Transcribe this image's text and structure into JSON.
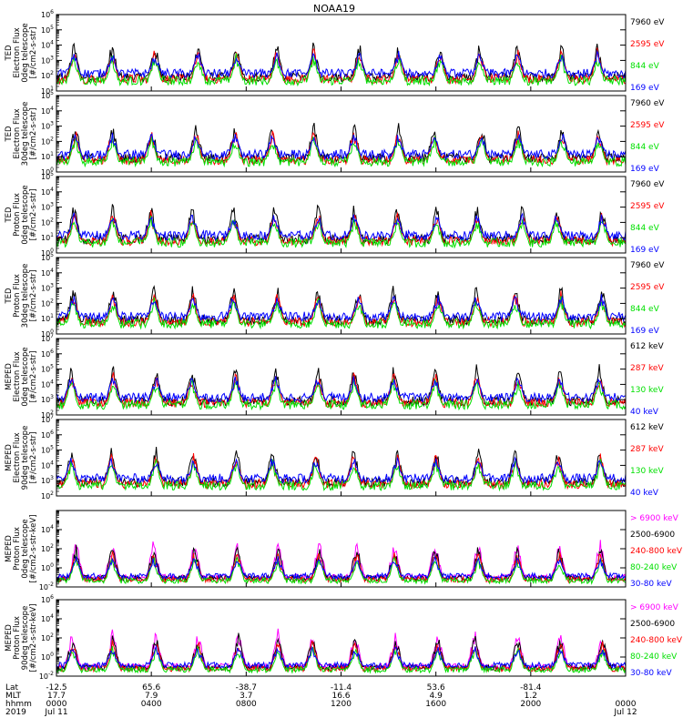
{
  "title": "NOAA19",
  "colors": {
    "black": "#000000",
    "red": "#ff0000",
    "green": "#00e000",
    "blue": "#0000ff",
    "magenta": "#ff00ff",
    "axis": "#000000"
  },
  "footer": {
    "row_labels": [
      "Lat",
      "MLT",
      "hhmm",
      "2019"
    ],
    "ticks": [
      {
        "time": "0000",
        "lat": "-12.5",
        "mlt": "17.7",
        "hhmm": "0000",
        "date": "Jul 11"
      },
      {
        "time": "0400",
        "lat": "65.6",
        "mlt": "7.9",
        "hhmm": "0400",
        "date": ""
      },
      {
        "time": "0800",
        "lat": "-38.7",
        "mlt": "3.7",
        "hhmm": "0800",
        "date": ""
      },
      {
        "time": "1200",
        "lat": "-11.4",
        "mlt": "16.6",
        "hhmm": "1200",
        "date": ""
      },
      {
        "time": "1600",
        "lat": "53.6",
        "mlt": "4.9",
        "hhmm": "1600",
        "date": ""
      },
      {
        "time": "2000",
        "lat": "-81.4",
        "mlt": "1.2",
        "hhmm": "2000",
        "date": ""
      },
      {
        "time": "2400",
        "lat": "",
        "mlt": "",
        "hhmm": "0000",
        "date": "Jul 12"
      }
    ]
  },
  "chart_data": [
    {
      "type": "line",
      "ylabel": [
        "TED",
        "Electron Flux",
        "0deg telescope",
        "[#/cm2-s-str]"
      ],
      "y_scale": "log",
      "ylim_exp": [
        1,
        6
      ],
      "xlim": [
        "0000",
        "2400"
      ],
      "series": [
        {
          "name": "7960 eV",
          "color": "#000000"
        },
        {
          "name": "2595 eV",
          "color": "#ff0000"
        },
        {
          "name": "844 eV",
          "color": "#00e000"
        },
        {
          "name": "169 eV",
          "color": "#0000ff"
        }
      ]
    },
    {
      "type": "line",
      "ylabel": [
        "TED",
        "Electron Flux",
        "30deg telescope",
        "[#/cm2-s-str]"
      ],
      "y_scale": "log",
      "ylim_exp": [
        0,
        5
      ],
      "xlim": [
        "0000",
        "2400"
      ],
      "series": [
        {
          "name": "7960 eV",
          "color": "#000000"
        },
        {
          "name": "2595 eV",
          "color": "#ff0000"
        },
        {
          "name": "844 eV",
          "color": "#00e000"
        },
        {
          "name": "169 eV",
          "color": "#0000ff"
        }
      ]
    },
    {
      "type": "line",
      "ylabel": [
        "TED",
        "Proton Flux",
        "0deg telescope",
        "[#/cm2-s-str]"
      ],
      "y_scale": "log",
      "ylim_exp": [
        0,
        5
      ],
      "xlim": [
        "0000",
        "2400"
      ],
      "series": [
        {
          "name": "7960 eV",
          "color": "#000000"
        },
        {
          "name": "2595 eV",
          "color": "#ff0000"
        },
        {
          "name": "844 eV",
          "color": "#00e000"
        },
        {
          "name": "169 eV",
          "color": "#0000ff"
        }
      ]
    },
    {
      "type": "line",
      "ylabel": [
        "TED",
        "Proton Flux",
        "30deg telescope",
        "[#/cm2-s-str]"
      ],
      "y_scale": "log",
      "ylim_exp": [
        0,
        5
      ],
      "xlim": [
        "0000",
        "2400"
      ],
      "series": [
        {
          "name": "7960 eV",
          "color": "#000000"
        },
        {
          "name": "2595 eV",
          "color": "#ff0000"
        },
        {
          "name": "844 eV",
          "color": "#00e000"
        },
        {
          "name": "169 eV",
          "color": "#0000ff"
        }
      ]
    },
    {
      "type": "line",
      "ylabel": [
        "MEPED",
        "Electron Flux",
        "0deg telescope",
        "[#/cm2-s-str]"
      ],
      "y_scale": "log",
      "ylim_exp": [
        2,
        7
      ],
      "xlim": [
        "0000",
        "2400"
      ],
      "series": [
        {
          "name": "612 keV",
          "color": "#000000"
        },
        {
          "name": "287 keV",
          "color": "#ff0000"
        },
        {
          "name": "130 keV",
          "color": "#00e000"
        },
        {
          "name": "40 keV",
          "color": "#0000ff"
        }
      ]
    },
    {
      "type": "line",
      "ylabel": [
        "MEPED",
        "Electron Flux",
        "90deg telescope",
        "[#/cm2-s-str]"
      ],
      "y_scale": "log",
      "ylim_exp": [
        2,
        7
      ],
      "xlim": [
        "0000",
        "2400"
      ],
      "series": [
        {
          "name": "612 keV",
          "color": "#000000"
        },
        {
          "name": "287 keV",
          "color": "#ff0000"
        },
        {
          "name": "130 keV",
          "color": "#00e000"
        },
        {
          "name": "40 keV",
          "color": "#0000ff"
        }
      ]
    },
    {
      "type": "line",
      "ylabel": [
        "MEPED",
        "Proton Flux",
        "0deg telescope",
        "[#/cm2-s-str-keV]"
      ],
      "y_scale": "log",
      "ylim_exp": [
        -2,
        6
      ],
      "tick_exps": [
        -2,
        0,
        2,
        4
      ],
      "xlim": [
        "0000",
        "2400"
      ],
      "series": [
        {
          "name": "> 6900 keV",
          "color": "#ff00ff"
        },
        {
          "name": "2500-6900",
          "color": "#000000"
        },
        {
          "name": "240-800 keV",
          "color": "#ff0000"
        },
        {
          "name": "80-240 keV",
          "color": "#00e000"
        },
        {
          "name": "30-80 keV",
          "color": "#0000ff"
        }
      ]
    },
    {
      "type": "line",
      "ylabel": [
        "MEPED",
        "Proton Flux",
        "90deg telescope",
        "[#/cm2-s-str-keV]"
      ],
      "y_scale": "log",
      "ylim_exp": [
        -2,
        6
      ],
      "tick_exps": [
        -2,
        0,
        2,
        4,
        6
      ],
      "xlim": [
        "0000",
        "2400"
      ],
      "series": [
        {
          "name": "> 6900 keV",
          "color": "#ff00ff"
        },
        {
          "name": "2500-6900",
          "color": "#000000"
        },
        {
          "name": "240-800 keV",
          "color": "#ff0000"
        },
        {
          "name": "80-240 keV",
          "color": "#00e000"
        },
        {
          "name": "30-80 keV",
          "color": "#0000ff"
        }
      ]
    }
  ]
}
